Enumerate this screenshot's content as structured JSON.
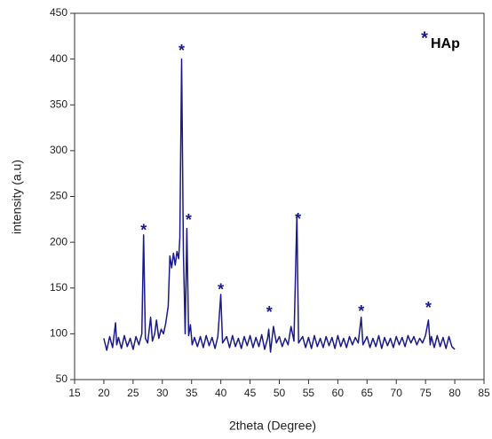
{
  "chart_data": {
    "type": "line",
    "xlabel": "2theta (Degree)",
    "ylabel": "intensity (a.u)",
    "xlim": [
      15,
      85
    ],
    "xticks": [
      15,
      20,
      25,
      30,
      35,
      40,
      45,
      50,
      55,
      60,
      65,
      70,
      75,
      80,
      85
    ],
    "ylim": [
      50,
      450
    ],
    "yticks": [
      50,
      100,
      150,
      200,
      250,
      300,
      350,
      400,
      450
    ],
    "legend_position": "upper right",
    "legend_symbol": "*",
    "x": [
      20,
      20.5,
      21,
      21.5,
      22,
      22.2,
      22.5,
      23,
      23.5,
      24,
      24.5,
      25,
      25.5,
      26,
      26.5,
      26.8,
      27.1,
      27.5,
      28,
      28.3,
      28.7,
      29,
      29.4,
      29.8,
      30.2,
      30.6,
      31,
      31.3,
      31.6,
      31.9,
      32.2,
      32.5,
      32.8,
      33,
      33.3,
      33.6,
      33.9,
      34.2,
      34.5,
      34.8,
      35.1,
      35.5,
      36,
      36.5,
      37,
      37.5,
      38,
      38.5,
      39,
      39.5,
      40,
      40.3,
      41,
      41.5,
      42,
      42.5,
      43,
      43.5,
      44,
      44.5,
      45,
      45.5,
      46,
      46.5,
      47,
      47.5,
      48,
      48.2,
      48.5,
      49,
      49.5,
      50,
      50.5,
      51,
      51.5,
      52,
      52.5,
      53,
      53.3,
      54,
      54.5,
      55,
      55.5,
      56,
      56.5,
      57,
      57.5,
      58,
      58.5,
      59,
      59.5,
      60,
      60.5,
      61,
      61.5,
      62,
      62.5,
      63,
      63.5,
      64,
      64.3,
      65,
      65.5,
      66,
      66.5,
      67,
      67.5,
      68,
      68.5,
      69,
      69.5,
      70,
      70.5,
      71,
      71.5,
      72,
      72.5,
      73,
      73.5,
      74,
      74.5,
      75,
      75.5,
      75.8,
      76,
      76.5,
      77,
      77.5,
      78,
      78.5,
      79,
      79.5,
      80
    ],
    "series": [
      {
        "name": "HAp",
        "color": "#1a1a8c",
        "values": [
          95,
          82,
          97,
          85,
          112,
          88,
          96,
          84,
          98,
          86,
          95,
          83,
          97,
          88,
          100,
          208,
          95,
          90,
          118,
          92,
          100,
          115,
          95,
          105,
          100,
          112,
          130,
          185,
          172,
          188,
          175,
          190,
          182,
          205,
          400,
          190,
          100,
          215,
          98,
          110,
          88,
          96,
          86,
          97,
          85,
          98,
          87,
          96,
          84,
          97,
          143,
          90,
          97,
          85,
          98,
          86,
          95,
          84,
          97,
          87,
          98,
          85,
          96,
          86,
          99,
          83,
          95,
          105,
          80,
          108,
          90,
          97,
          86,
          95,
          88,
          108,
          92,
          230,
          90,
          97,
          85,
          96,
          84,
          98,
          86,
          95,
          85,
          97,
          87,
          96,
          84,
          98,
          86,
          95,
          85,
          97,
          88,
          96,
          90,
          118,
          88,
          97,
          85,
          95,
          86,
          98,
          84,
          96,
          87,
          95,
          85,
          97,
          88,
          96,
          86,
          98,
          90,
          97,
          88,
          95,
          90,
          98,
          115,
          88,
          97,
          85,
          98,
          86,
          96,
          84,
          97,
          86,
          83
        ]
      }
    ],
    "annotations": [
      {
        "text": "*",
        "x": 26.8,
        "y": 217
      },
      {
        "text": "*",
        "x": 33.3,
        "y": 413
      },
      {
        "text": "*",
        "x": 34.5,
        "y": 228
      },
      {
        "text": "*",
        "x": 40,
        "y": 152
      },
      {
        "text": "*",
        "x": 48.3,
        "y": 127
      },
      {
        "text": "*",
        "x": 53.2,
        "y": 229
      },
      {
        "text": "*",
        "x": 64,
        "y": 128
      },
      {
        "text": "*",
        "x": 75.5,
        "y": 132
      }
    ]
  }
}
